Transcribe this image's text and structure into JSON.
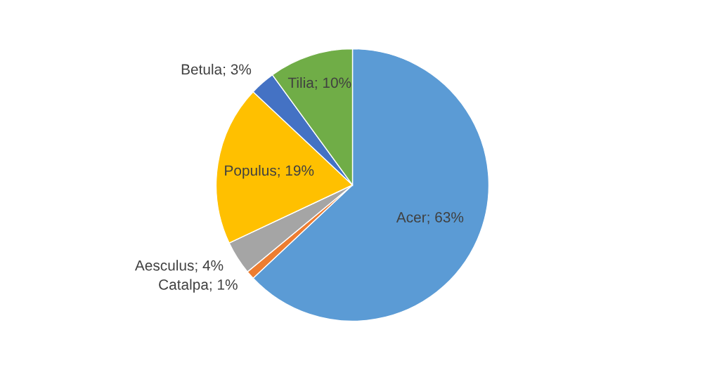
{
  "chart_data": {
    "type": "pie",
    "categories": [
      "Acer",
      "Catalpa",
      "Aesculus",
      "Populus",
      "Betula",
      "Tilia"
    ],
    "values": [
      63,
      1,
      4,
      19,
      3,
      10
    ],
    "colors": [
      "#5b9bd5",
      "#ed7d31",
      "#a5a5a5",
      "#ffc000",
      "#4472c4",
      "#70ad47"
    ],
    "value_labels": [
      "63%",
      "1%",
      "4%",
      "19%",
      "3%",
      "10%"
    ],
    "legend": false
  }
}
